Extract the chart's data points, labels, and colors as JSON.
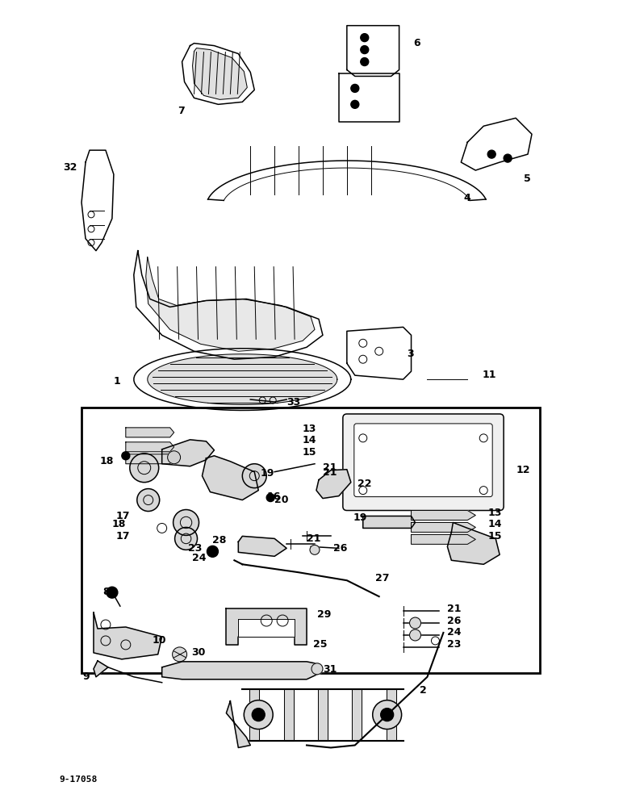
{
  "background_color": "#ffffff",
  "figure_width": 7.72,
  "figure_height": 10.0,
  "dpi": 100,
  "footer_text": "9-17058",
  "lc": "black",
  "lw_heavy": 1.5,
  "lw_med": 1.1,
  "lw_thin": 0.7
}
